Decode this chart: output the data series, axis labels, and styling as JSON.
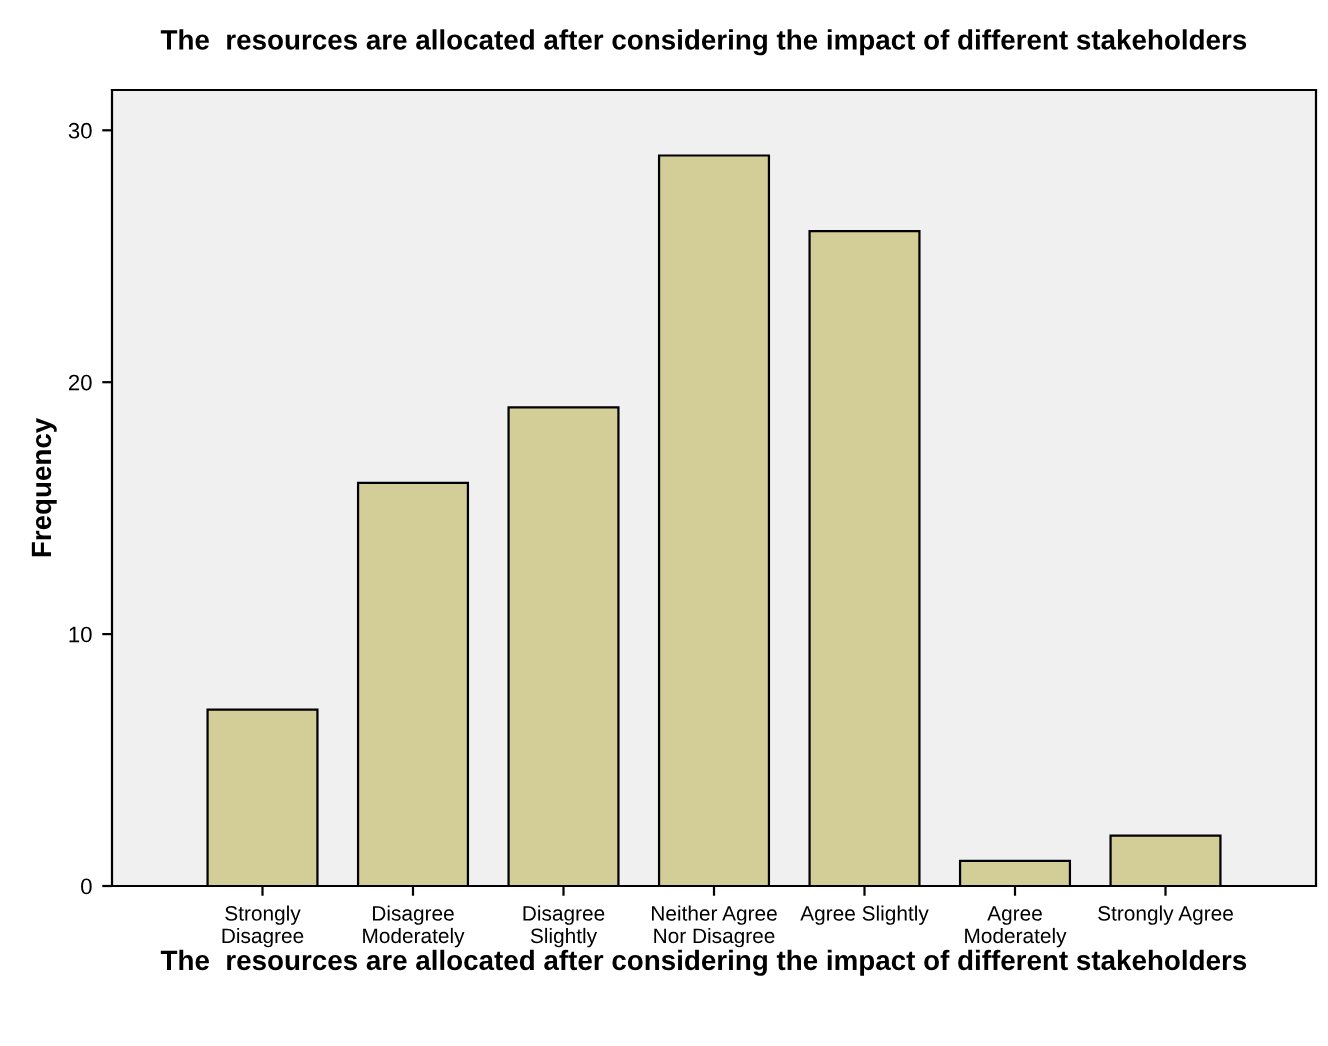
{
  "chart_data": {
    "type": "bar",
    "title": "The  resources are allocated after considering the impact of different stakeholders",
    "xlabel": "The  resources are allocated after considering the impact of different stakeholders",
    "ylabel": "Frequency",
    "categories": [
      "Strongly\nDisagree",
      "Disagree\nModerately",
      "Disagree\nSlightly",
      "Neither Agree\nNor Disagree",
      "Agree Slightly",
      "Agree\nModerately",
      "Strongly Agree"
    ],
    "values": [
      7,
      16,
      19,
      29,
      26,
      1,
      2
    ],
    "color": "#d3ce97",
    "ylim": [
      0,
      31.6
    ],
    "yticks": [
      0,
      10,
      20,
      30
    ],
    "grid": false
  }
}
